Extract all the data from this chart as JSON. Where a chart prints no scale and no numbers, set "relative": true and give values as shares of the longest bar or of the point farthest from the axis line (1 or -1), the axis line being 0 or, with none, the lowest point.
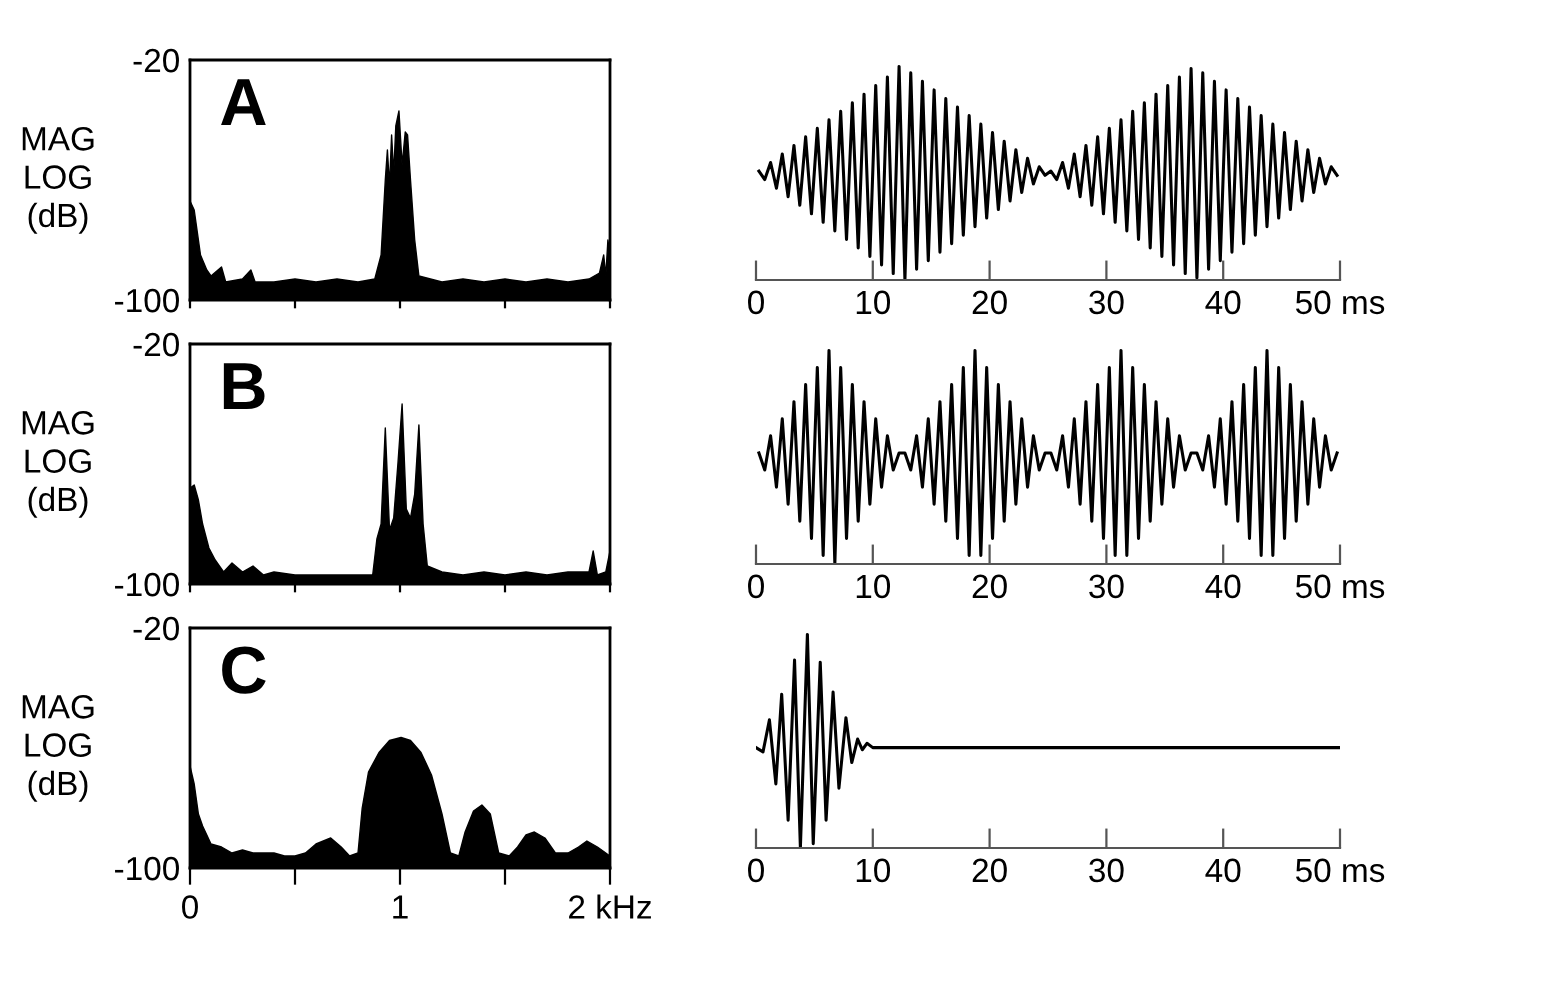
{
  "chart_data": [
    {
      "type": "area",
      "ylabel": "MAG\nLOG\n(dB)",
      "annotations": [
        "A"
      ],
      "color": "#000000",
      "xlim": [
        0,
        2
      ],
      "ylim": [
        -100,
        -20
      ],
      "yticks": [
        -20,
        -100
      ],
      "xticks": [
        {
          "value": 0,
          "label": null
        },
        {
          "value": 0.5,
          "label": null
        },
        {
          "value": 1,
          "label": null
        },
        {
          "value": 1.5,
          "label": null
        },
        {
          "value": 2,
          "label": null
        }
      ],
      "tick_labels": "y",
      "x": [
        0,
        0.02,
        0.05,
        0.08,
        0.1,
        0.15,
        0.17,
        0.25,
        0.29,
        0.31,
        0.4,
        0.5,
        0.6,
        0.7,
        0.8,
        0.88,
        0.91,
        0.93,
        0.94,
        0.95,
        0.96,
        0.97,
        0.98,
        0.995,
        1.01,
        1.025,
        1.036,
        1.05,
        1.07,
        1.09,
        1.2,
        1.3,
        1.4,
        1.5,
        1.6,
        1.7,
        1.8,
        1.9,
        1.95,
        1.97,
        1.98,
        1.99,
        2.0
      ],
      "values": [
        -67,
        -70,
        -85,
        -90,
        -92,
        -89,
        -94,
        -93,
        -90,
        -94,
        -94,
        -93,
        -94,
        -93,
        -94,
        -93,
        -85,
        -60,
        -50,
        -62,
        -45,
        -58,
        -42,
        -37,
        -55,
        -44,
        -45,
        -60,
        -80,
        -92,
        -94,
        -93,
        -94,
        -93,
        -94,
        -93,
        -94,
        -93,
        -91,
        -85,
        -92,
        -80,
        -85
      ]
    },
    {
      "type": "line",
      "color": "#000000",
      "relative": true,
      "xlim": [
        0,
        50
      ],
      "xticks": [
        0,
        10,
        20,
        30,
        40,
        {
          "value": 50,
          "label": "50 ms"
        }
      ],
      "tick_labels": "x",
      "x": [
        0.25,
        0.75,
        1.25,
        1.75,
        2.25,
        2.75,
        3.25,
        3.75,
        4.25,
        4.75,
        5.25,
        5.75,
        6.25,
        6.75,
        7.25,
        7.75,
        8.25,
        8.75,
        9.25,
        9.75,
        10.25,
        10.75,
        11.25,
        11.75,
        12.25,
        12.75,
        13.25,
        13.75,
        14.25,
        14.75,
        15.25,
        15.75,
        16.25,
        16.75,
        17.25,
        17.75,
        18.25,
        18.75,
        19.25,
        19.75,
        20.25,
        20.75,
        21.25,
        21.75,
        22.25,
        22.75,
        23.25,
        23.75,
        24.25,
        24.75,
        25.25,
        25.75,
        26.25,
        26.75,
        27.25,
        27.75,
        28.25,
        28.75,
        29.25,
        29.75,
        30.25,
        30.75,
        31.25,
        31.75,
        32.25,
        32.75,
        33.25,
        33.75,
        34.25,
        34.75,
        35.25,
        35.75,
        36.25,
        36.75,
        37.25,
        37.75,
        38.25,
        38.75,
        39.25,
        39.75,
        40.25,
        40.75,
        41.25,
        41.75,
        42.25,
        42.75,
        43.25,
        43.75,
        44.25,
        44.75,
        45.25,
        45.75,
        46.25,
        46.75,
        47.25,
        47.75,
        48.25,
        48.75,
        49.25,
        49.75
      ],
      "values": [
        0.51,
        0.47,
        0.55,
        0.43,
        0.59,
        0.39,
        0.63,
        0.35,
        0.67,
        0.31,
        0.71,
        0.27,
        0.75,
        0.23,
        0.79,
        0.19,
        0.83,
        0.15,
        0.87,
        0.11,
        0.91,
        0.07,
        0.95,
        0.03,
        1.0,
        0.0,
        0.97,
        0.05,
        0.93,
        0.09,
        0.89,
        0.13,
        0.85,
        0.17,
        0.81,
        0.21,
        0.77,
        0.25,
        0.73,
        0.29,
        0.69,
        0.33,
        0.65,
        0.37,
        0.61,
        0.41,
        0.57,
        0.45,
        0.53,
        0.49,
        0.51,
        0.47,
        0.55,
        0.43,
        0.59,
        0.39,
        0.63,
        0.35,
        0.67,
        0.31,
        0.71,
        0.27,
        0.75,
        0.23,
        0.79,
        0.19,
        0.83,
        0.15,
        0.87,
        0.11,
        0.91,
        0.07,
        0.95,
        0.03,
        0.99,
        0.01,
        0.97,
        0.05,
        0.93,
        0.09,
        0.89,
        0.13,
        0.85,
        0.17,
        0.81,
        0.21,
        0.77,
        0.25,
        0.73,
        0.29,
        0.69,
        0.33,
        0.65,
        0.37,
        0.61,
        0.41,
        0.57,
        0.45,
        0.53,
        0.49
      ]
    },
    {
      "type": "area",
      "ylabel": "MAG\nLOG\n(dB)",
      "annotations": [
        "B"
      ],
      "color": "#000000",
      "xlim": [
        0,
        2
      ],
      "ylim": [
        -100,
        -20
      ],
      "yticks": [
        -20,
        -100
      ],
      "xticks": [
        {
          "value": 0,
          "label": null
        },
        {
          "value": 0.5,
          "label": null
        },
        {
          "value": 1,
          "label": null
        },
        {
          "value": 1.5,
          "label": null
        },
        {
          "value": 2,
          "label": null
        }
      ],
      "tick_labels": "y",
      "x": [
        0,
        0.02,
        0.04,
        0.06,
        0.09,
        0.12,
        0.16,
        0.2,
        0.25,
        0.3,
        0.35,
        0.4,
        0.5,
        0.6,
        0.7,
        0.8,
        0.87,
        0.89,
        0.91,
        0.93,
        0.95,
        0.97,
        0.99,
        1.01,
        1.03,
        1.05,
        1.07,
        1.09,
        1.11,
        1.13,
        1.2,
        1.3,
        1.4,
        1.5,
        1.6,
        1.7,
        1.8,
        1.9,
        1.92,
        1.94,
        1.98,
        2.0
      ],
      "values": [
        -68,
        -67,
        -72,
        -80,
        -88,
        -92,
        -96,
        -93,
        -96,
        -94,
        -97,
        -96,
        -97,
        -97,
        -97,
        -97,
        -97,
        -85,
        -80,
        -48,
        -82,
        -78,
        -60,
        -40,
        -75,
        -78,
        -70,
        -47,
        -80,
        -94,
        -96,
        -97,
        -96,
        -97,
        -96,
        -97,
        -96,
        -96,
        -89,
        -97,
        -96,
        -89
      ]
    },
    {
      "type": "line",
      "color": "#000000",
      "relative": true,
      "xlim": [
        0,
        50
      ],
      "xticks": [
        0,
        10,
        20,
        30,
        40,
        {
          "value": 50,
          "label": "50 ms"
        }
      ],
      "tick_labels": "x",
      "x": [
        0.25,
        0.75,
        1.25,
        1.75,
        2.25,
        2.75,
        3.25,
        3.75,
        4.25,
        4.75,
        5.25,
        5.75,
        6.25,
        6.75,
        7.25,
        7.75,
        8.25,
        8.75,
        9.25,
        9.75,
        10.25,
        10.75,
        11.25,
        11.75,
        12.25,
        12.75,
        13.25,
        13.75,
        14.25,
        14.75,
        15.25,
        15.75,
        16.25,
        16.75,
        17.25,
        17.75,
        18.25,
        18.75,
        19.25,
        19.75,
        20.25,
        20.75,
        21.25,
        21.75,
        22.25,
        22.75,
        23.25,
        23.75,
        24.25,
        24.75,
        25.25,
        25.75,
        26.25,
        26.75,
        27.25,
        27.75,
        28.25,
        28.75,
        29.25,
        29.75,
        30.25,
        30.75,
        31.25,
        31.75,
        32.25,
        32.75,
        33.25,
        33.75,
        34.25,
        34.75,
        35.25,
        35.75,
        36.25,
        36.75,
        37.25,
        37.75,
        38.25,
        38.75,
        39.25,
        39.75,
        40.25,
        40.75,
        41.25,
        41.75,
        42.25,
        42.75,
        43.25,
        43.75,
        44.25,
        44.75,
        45.25,
        45.75,
        46.25,
        46.75,
        47.25,
        47.75,
        48.25,
        48.75,
        49.25,
        49.75
      ],
      "values": [
        0.52,
        0.44,
        0.6,
        0.36,
        0.68,
        0.28,
        0.76,
        0.2,
        0.84,
        0.12,
        0.92,
        0.04,
        1.0,
        0.0,
        0.92,
        0.12,
        0.84,
        0.2,
        0.76,
        0.28,
        0.68,
        0.36,
        0.6,
        0.44,
        0.52,
        0.52,
        0.44,
        0.6,
        0.36,
        0.68,
        0.28,
        0.76,
        0.2,
        0.84,
        0.12,
        0.92,
        0.04,
        1.0,
        0.04,
        0.92,
        0.12,
        0.84,
        0.2,
        0.76,
        0.28,
        0.68,
        0.36,
        0.6,
        0.44,
        0.52,
        0.52,
        0.44,
        0.6,
        0.36,
        0.68,
        0.28,
        0.76,
        0.2,
        0.84,
        0.12,
        0.92,
        0.04,
        1.0,
        0.04,
        0.92,
        0.12,
        0.84,
        0.2,
        0.76,
        0.28,
        0.68,
        0.36,
        0.6,
        0.44,
        0.52,
        0.52,
        0.44,
        0.6,
        0.36,
        0.68,
        0.28,
        0.76,
        0.2,
        0.84,
        0.12,
        0.92,
        0.04,
        1.0,
        0.04,
        0.92,
        0.12,
        0.84,
        0.2,
        0.76,
        0.28,
        0.68,
        0.36,
        0.6,
        0.44,
        0.52
      ]
    },
    {
      "type": "area",
      "ylabel": "MAG\nLOG\n(dB)",
      "annotations": [
        "C"
      ],
      "color": "#000000",
      "xlim": [
        0,
        2
      ],
      "ylim": [
        -100,
        -20
      ],
      "yticks": [
        -20,
        -100
      ],
      "xticks": [
        0,
        {
          "value": 0.5,
          "label": null
        },
        1,
        {
          "value": 1.5,
          "label": null
        },
        {
          "value": 2,
          "label": "2 kHz"
        }
      ],
      "x": [
        0,
        0.02,
        0.04,
        0.06,
        0.1,
        0.15,
        0.2,
        0.25,
        0.3,
        0.35,
        0.4,
        0.45,
        0.5,
        0.55,
        0.6,
        0.67,
        0.72,
        0.76,
        0.8,
        0.82,
        0.85,
        0.9,
        0.95,
        1.005,
        1.05,
        1.1,
        1.15,
        1.2,
        1.24,
        1.28,
        1.31,
        1.35,
        1.39,
        1.43,
        1.47,
        1.52,
        1.56,
        1.6,
        1.64,
        1.69,
        1.74,
        1.8,
        1.85,
        1.89,
        1.94,
        2.0
      ],
      "values": [
        -66,
        -72,
        -82,
        -86,
        -92,
        -93,
        -95,
        -94,
        -95,
        -95,
        -95,
        -96,
        -96,
        -95,
        -92,
        -90,
        -93,
        -96,
        -95,
        -80,
        -68,
        -61.5,
        -57.5,
        -56.5,
        -57.5,
        -61.5,
        -69,
        -82,
        -95,
        -96,
        -88,
        -81,
        -79,
        -82,
        -95,
        -96,
        -93,
        -89,
        -88,
        -90,
        -95,
        -95,
        -93,
        -91,
        -93,
        -96
      ]
    },
    {
      "type": "line",
      "color": "#000000",
      "relative": true,
      "xlim": [
        0,
        50
      ],
      "xticks": [
        0,
        10,
        20,
        30,
        40,
        {
          "value": 50,
          "label": "50 ms"
        }
      ],
      "tick_labels": "x",
      "x": [
        0,
        0.6,
        1.15,
        1.7,
        2.2,
        2.75,
        3.3,
        3.8,
        4.4,
        4.9,
        5.5,
        6.0,
        6.6,
        7.1,
        7.7,
        8.2,
        8.7,
        9.1,
        9.5,
        10,
        50
      ],
      "values": [
        0.47,
        0.45,
        0.6,
        0.3,
        0.72,
        0.13,
        0.88,
        0,
        1,
        0.02,
        0.87,
        0.13,
        0.73,
        0.28,
        0.61,
        0.4,
        0.51,
        0.46,
        0.49,
        0.47,
        0.47
      ]
    }
  ]
}
